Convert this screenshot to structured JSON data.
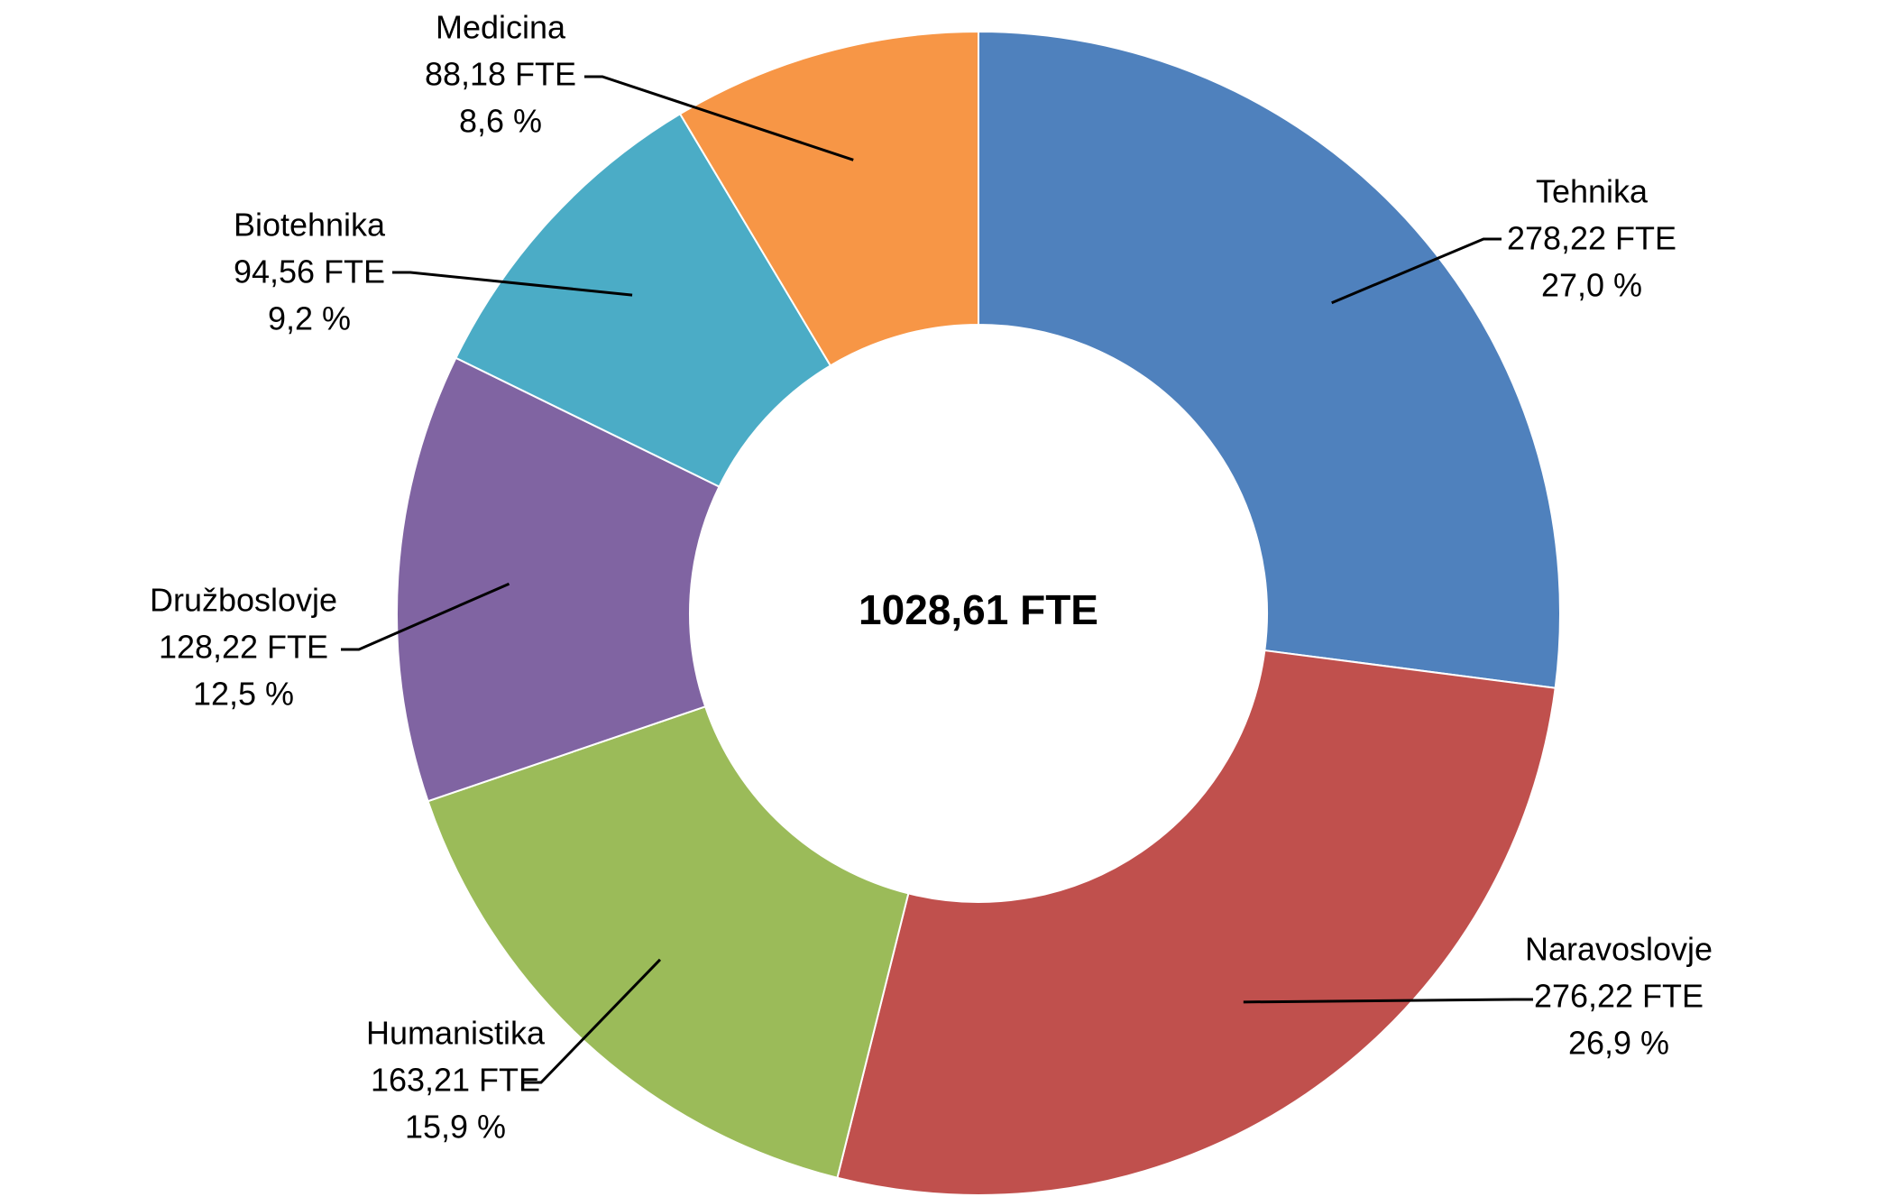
{
  "chart_data": {
    "type": "pie",
    "variant": "donut",
    "center_label": "1028,61 FTE",
    "slices": [
      {
        "name": "Tehnika",
        "value": 278.22,
        "value_label": "278,22 FTE",
        "percent_label": "27,0 %",
        "color": "#4F81BD"
      },
      {
        "name": "Naravoslovje",
        "value": 276.22,
        "value_label": "276,22 FTE",
        "percent_label": "26,9 %",
        "color": "#C0504D"
      },
      {
        "name": "Humanistika",
        "value": 163.21,
        "value_label": "163,21 FTE",
        "percent_label": "15,9 %",
        "color": "#9BBB59"
      },
      {
        "name": "Družboslovje",
        "value": 128.22,
        "value_label": "128,22 FTE",
        "percent_label": "12,5 %",
        "color": "#8064A2"
      },
      {
        "name": "Biotehnika",
        "value": 94.56,
        "value_label": "94,56 FTE",
        "percent_label": "9,2 %",
        "color": "#4BACC6"
      },
      {
        "name": "Medicina",
        "value": 88.18,
        "value_label": "88,18 FTE",
        "percent_label": "8,6 %",
        "color": "#F79646"
      }
    ],
    "start_angle_deg": 0,
    "direction": "clockwise",
    "legend": "none"
  }
}
